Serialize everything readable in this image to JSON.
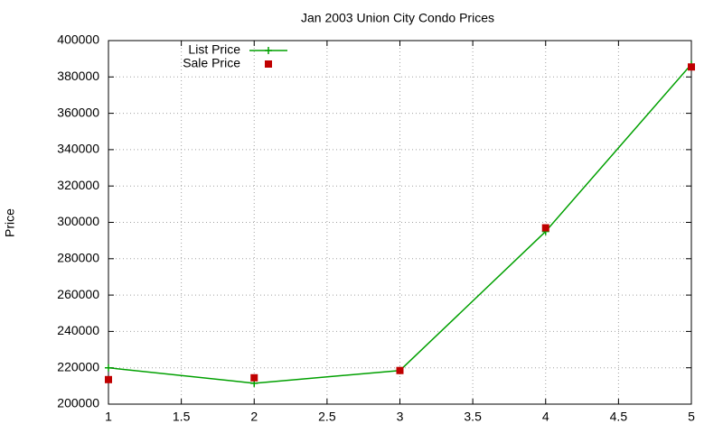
{
  "chart_data": {
    "type": "line",
    "title": "Jan 2003 Union City Condo Prices",
    "y_label": "Price",
    "x": [
      1,
      2,
      3,
      4,
      5
    ],
    "series": [
      {
        "name": "List Price",
        "color": "#00a000",
        "style": "linespoints",
        "values": [
          220000,
          211500,
          218500,
          295000,
          387000
        ]
      },
      {
        "name": "Sale Price",
        "color": "#c00000",
        "style": "points",
        "values": [
          213500,
          214500,
          218500,
          297000,
          385500
        ]
      }
    ],
    "xlim": [
      1,
      5
    ],
    "xticks": [
      1,
      1.5,
      2,
      2.5,
      3,
      3.5,
      4,
      4.5,
      5
    ],
    "ylim": [
      200000,
      400000
    ],
    "yticks": [
      200000,
      220000,
      240000,
      260000,
      280000,
      300000,
      320000,
      340000,
      360000,
      380000,
      400000
    ],
    "grid": true,
    "legend": "top-left"
  }
}
